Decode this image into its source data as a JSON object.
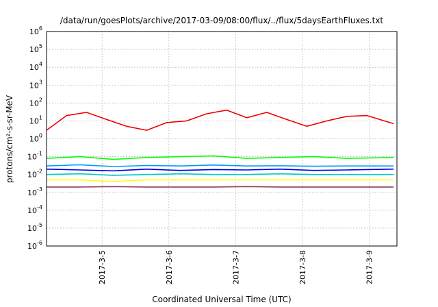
{
  "chart_data": {
    "type": "line",
    "title": "/data/run/goesPlots/archive/2017-03-09/08:00/flux/../flux/5daysEarthFluxes.txt",
    "xlabel": "Coordinated Universal Time (UTC)",
    "ylabel": "protons/cm²-s-sr-MeV",
    "y_scale": "log",
    "ylim": [
      1e-06,
      1000000
    ],
    "y_ticks": [
      {
        "base": "10",
        "exp": "-6"
      },
      {
        "base": "10",
        "exp": "-5"
      },
      {
        "base": "10",
        "exp": "-4"
      },
      {
        "base": "10",
        "exp": "-3"
      },
      {
        "base": "10",
        "exp": "-2"
      },
      {
        "base": "10",
        "exp": "-1"
      },
      {
        "base": "10",
        "exp": "0"
      },
      {
        "base": "10",
        "exp": "1"
      },
      {
        "base": "10",
        "exp": "2"
      },
      {
        "base": "10",
        "exp": "3"
      },
      {
        "base": "10",
        "exp": "4"
      },
      {
        "base": "10",
        "exp": "5"
      },
      {
        "base": "10",
        "exp": "6"
      }
    ],
    "xlim": [
      "2017-03-04 04:00",
      "2017-03-09 09:00"
    ],
    "x_ticks": [
      "2017-3-5",
      "2017-3-6",
      "2017-3-7",
      "2017-3-8",
      "2017-3-9"
    ],
    "grid": true,
    "legend": "none",
    "series": [
      {
        "color": "#ee0000",
        "x_days": [
          0,
          0.3,
          0.6,
          0.9,
          1.2,
          1.5,
          1.8,
          2.1,
          2.4,
          2.7,
          3.0,
          3.3,
          3.6,
          3.9,
          4.2,
          4.5,
          4.8,
          5.2
        ],
        "values": [
          3,
          20,
          30,
          12,
          5,
          3,
          8,
          10,
          25,
          40,
          15,
          30,
          12,
          5,
          10,
          18,
          20,
          7
        ]
      },
      {
        "color": "#00ff00",
        "x_days": [
          0,
          0.5,
          1.0,
          1.5,
          2.0,
          2.5,
          3.0,
          3.5,
          4.0,
          4.5,
          5.2
        ],
        "values": [
          0.08,
          0.1,
          0.07,
          0.09,
          0.1,
          0.11,
          0.08,
          0.09,
          0.1,
          0.08,
          0.09
        ]
      },
      {
        "color": "#0099ff",
        "x_days": [
          0,
          0.5,
          1.0,
          1.5,
          2.0,
          2.5,
          3.0,
          3.5,
          4.0,
          4.5,
          5.2
        ],
        "values": [
          0.03,
          0.035,
          0.028,
          0.032,
          0.03,
          0.034,
          0.03,
          0.031,
          0.029,
          0.03,
          0.03
        ]
      },
      {
        "color": "#0000ee",
        "x_days": [
          0,
          0.5,
          1.0,
          1.5,
          2.0,
          2.5,
          3.0,
          3.5,
          4.0,
          4.5,
          5.2
        ],
        "values": [
          0.02,
          0.018,
          0.016,
          0.02,
          0.017,
          0.019,
          0.018,
          0.02,
          0.017,
          0.018,
          0.02
        ]
      },
      {
        "color": "#00cccc",
        "x_days": [
          0,
          0.5,
          1.0,
          1.5,
          2.0,
          2.5,
          3.0,
          3.5,
          4.0,
          4.5,
          5.2
        ],
        "values": [
          0.01,
          0.011,
          0.009,
          0.01,
          0.011,
          0.01,
          0.01,
          0.011,
          0.01,
          0.01,
          0.01
        ]
      },
      {
        "color": "#ffff00",
        "x_days": [
          0,
          0.5,
          1.0,
          1.5,
          2.0,
          2.5,
          3.0,
          3.5,
          4.0,
          4.5,
          5.2
        ],
        "values": [
          0.005,
          0.005,
          0.004,
          0.005,
          0.005,
          0.005,
          0.005,
          0.005,
          0.005,
          0.005,
          0.005
        ]
      },
      {
        "color": "#8b3a62",
        "x_days": [
          0,
          0.5,
          1.0,
          1.5,
          2.0,
          2.5,
          3.0,
          3.5,
          4.0,
          4.5,
          5.2
        ],
        "values": [
          0.002,
          0.002,
          0.0021,
          0.002,
          0.002,
          0.002,
          0.0021,
          0.002,
          0.002,
          0.002,
          0.002
        ]
      }
    ]
  }
}
